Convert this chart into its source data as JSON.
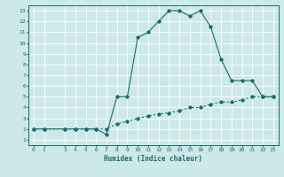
{
  "xlabel": "Humidex (Indice chaleur)",
  "bg_color": "#cde8e8",
  "line_color": "#1a6b6b",
  "grid_color": "#ffffff",
  "xlim": [
    -0.5,
    23.5
  ],
  "ylim": [
    0.5,
    13.5
  ],
  "xticks": [
    0,
    1,
    3,
    4,
    5,
    6,
    7,
    8,
    9,
    10,
    11,
    12,
    13,
    14,
    15,
    16,
    17,
    18,
    19,
    20,
    21,
    22,
    23
  ],
  "yticks": [
    1,
    2,
    3,
    4,
    5,
    6,
    7,
    8,
    9,
    10,
    11,
    12,
    13
  ],
  "series1_x": [
    0,
    1,
    3,
    4,
    5,
    6,
    7,
    8,
    9,
    10,
    11,
    12,
    13,
    14,
    15,
    16,
    17,
    18,
    19,
    20,
    21,
    22,
    23
  ],
  "series1_y": [
    2,
    2,
    2,
    2,
    2,
    2,
    1.5,
    5.0,
    5.0,
    10.5,
    11,
    12,
    13,
    13,
    12.5,
    13,
    11.5,
    8.5,
    6.5,
    6.5,
    6.5,
    5,
    5
  ],
  "series2_x": [
    0,
    1,
    3,
    4,
    5,
    6,
    7,
    8,
    9,
    10,
    11,
    12,
    13,
    14,
    15,
    16,
    17,
    18,
    19,
    20,
    21,
    22,
    23
  ],
  "series2_y": [
    2,
    2,
    2,
    2,
    2,
    2,
    2,
    2.5,
    2.7,
    3.0,
    3.2,
    3.4,
    3.5,
    3.7,
    4.0,
    4.0,
    4.3,
    4.5,
    4.5,
    4.7,
    5.0,
    5.0,
    5.0
  ]
}
